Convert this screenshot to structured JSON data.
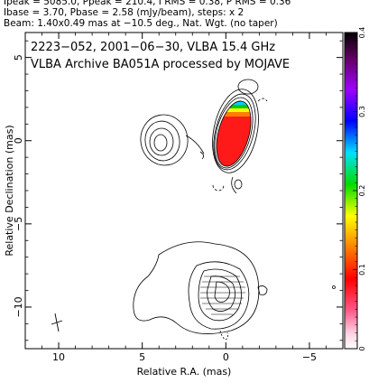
{
  "header": {
    "line1": "Ipeak = 5085.0, Ppeak = 210.4, I RMS = 0.38, P RMS = 0.36",
    "line2": "Ibase = 3.70, Pbase = 2.58 (mJy/beam), steps: x 2",
    "line3": "Beam: 1.40x0.49 mas at −10.5 deg., Nat. Wgt. (no taper)"
  },
  "plot": {
    "title_line1": "2223−052, 2001−06−30, VLBA 15.4 GHz",
    "title_line2": "VLBA Archive BA051A processed by MOJAVE",
    "xlabel": "Relative R.A. (mas)",
    "ylabel": "Relative Declination (mas)",
    "xlim": [
      12,
      -7
    ],
    "ylim": [
      -12.5,
      6.5
    ],
    "xticks": [
      10,
      5,
      0,
      -5
    ],
    "xtick_labels": [
      "10",
      "5",
      "0",
      "−5"
    ],
    "yticks": [
      5,
      0,
      -5,
      -10
    ],
    "ytick_labels": [
      "5",
      "0",
      "−5",
      "−10"
    ]
  },
  "colorbar": {
    "min": 0,
    "max": 0.4,
    "ticks": [
      "0",
      "0.1",
      "0.2",
      "0.3",
      "0.4"
    ]
  }
}
